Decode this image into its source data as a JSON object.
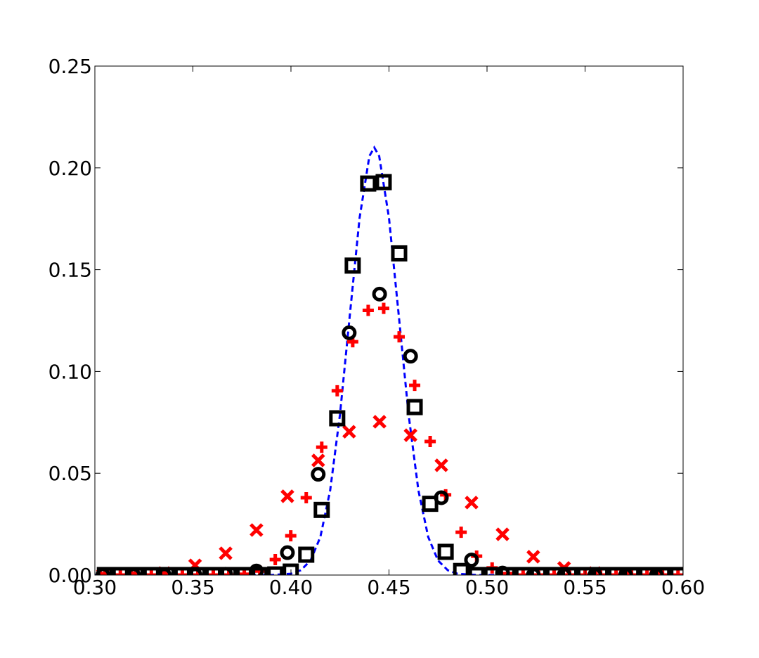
{
  "chart_data": {
    "type": "scatter",
    "xlim": [
      0.3,
      0.6
    ],
    "ylim": [
      0.0,
      0.25
    ],
    "xticks": [
      {
        "value": 0.3,
        "label": "0.30"
      },
      {
        "value": 0.35,
        "label": "0.35"
      },
      {
        "value": 0.4,
        "label": "0.40"
      },
      {
        "value": 0.45,
        "label": "0.45"
      },
      {
        "value": 0.5,
        "label": "0.50"
      },
      {
        "value": 0.55,
        "label": "0.55"
      },
      {
        "value": 0.6,
        "label": "0.60"
      }
    ],
    "yticks": [
      {
        "value": 0.0,
        "label": "0.00"
      },
      {
        "value": 0.05,
        "label": "0.05"
      },
      {
        "value": 0.1,
        "label": "0.10"
      },
      {
        "value": 0.15,
        "label": "0.15"
      },
      {
        "value": 0.2,
        "label": "0.20"
      },
      {
        "value": 0.25,
        "label": "0.25"
      }
    ],
    "series": [
      {
        "marker": "line",
        "linestyle": "dashed",
        "color": "#0000ff",
        "x": [
          0.3,
          0.35,
          0.39,
          0.4,
          0.405,
          0.41,
          0.415,
          0.42,
          0.425,
          0.43,
          0.435,
          0.44,
          0.4425,
          0.445,
          0.45,
          0.455,
          0.46,
          0.465,
          0.47,
          0.475,
          0.48,
          0.485,
          0.495,
          0.55,
          0.6
        ],
        "values": [
          0,
          0,
          0,
          0.00065,
          0.00233,
          0.00715,
          0.0187,
          0.0416,
          0.0788,
          0.1274,
          0.1754,
          0.2058,
          0.21,
          0.2058,
          0.1754,
          0.1274,
          0.0788,
          0.0416,
          0.0187,
          0.00715,
          0.00233,
          0.00065,
          0,
          0,
          0
        ]
      },
      {
        "marker": "plus",
        "color": "#ff0000",
        "x": [
          0.3051,
          0.313,
          0.3209,
          0.3288,
          0.3367,
          0.3446,
          0.3525,
          0.3604,
          0.3683,
          0.3762,
          0.3841,
          0.392,
          0.3999,
          0.4078,
          0.4157,
          0.4236,
          0.4315,
          0.4394,
          0.4473,
          0.4552,
          0.4631,
          0.471,
          0.4789,
          0.4868,
          0.4947,
          0.5026,
          0.5105,
          0.5184,
          0.5263,
          0.5342,
          0.5421,
          0.55,
          0.5579,
          0.5658,
          0.5737,
          0.5816,
          0.5895,
          0.5974
        ],
        "values": [
          0,
          0,
          0,
          0,
          0,
          0,
          0,
          0,
          0,
          0.0004,
          0.002,
          0.0076,
          0.0193,
          0.038,
          0.0628,
          0.0905,
          0.1146,
          0.13,
          0.131,
          0.117,
          0.0932,
          0.0656,
          0.0394,
          0.021,
          0.0093,
          0.0035,
          0.0007,
          0,
          0,
          0,
          0,
          0,
          0,
          0,
          0,
          0,
          0,
          0
        ]
      },
      {
        "marker": "x",
        "color": "#ff0000",
        "x": [
          0.3041,
          0.3197,
          0.3354,
          0.3511,
          0.3667,
          0.3824,
          0.3982,
          0.4139,
          0.4297,
          0.4452,
          0.461,
          0.4767,
          0.4921,
          0.5079,
          0.5236,
          0.5393,
          0.555,
          0.5707,
          0.5864
        ],
        "values": [
          0,
          0.0003,
          0.001,
          0.0048,
          0.0107,
          0.0221,
          0.0387,
          0.0563,
          0.0704,
          0.0753,
          0.0687,
          0.0539,
          0.0356,
          0.02,
          0.009,
          0.0035,
          0.001,
          0,
          0
        ]
      },
      {
        "marker": "circle",
        "color": "#000000",
        "x": [
          0.3041,
          0.3197,
          0.3354,
          0.3511,
          0.3667,
          0.3824,
          0.3982,
          0.4139,
          0.4297,
          0.4452,
          0.461,
          0.4767,
          0.4921,
          0.5079,
          0.5236,
          0.5393,
          0.555,
          0.5707,
          0.5864
        ],
        "values": [
          0,
          0,
          0,
          0,
          0.0004,
          0.002,
          0.011,
          0.0495,
          0.119,
          0.138,
          0.1075,
          0.038,
          0.0074,
          0.001,
          0,
          0,
          0,
          0,
          0
        ]
      },
      {
        "marker": "square",
        "color": "#000000",
        "x": [
          0.3051,
          0.313,
          0.3209,
          0.3288,
          0.3367,
          0.3446,
          0.3525,
          0.3604,
          0.3683,
          0.3762,
          0.3841,
          0.392,
          0.3999,
          0.4078,
          0.4157,
          0.4236,
          0.4315,
          0.4394,
          0.4473,
          0.4552,
          0.4631,
          0.471,
          0.4789,
          0.4868,
          0.4947,
          0.5026,
          0.5105,
          0.5184,
          0.5263,
          0.5342,
          0.5421,
          0.55,
          0.5579,
          0.5658,
          0.5737,
          0.5816,
          0.5895,
          0.5974
        ],
        "values": [
          0,
          0,
          0,
          0,
          0,
          0,
          0,
          0,
          0,
          0,
          0,
          0.0003,
          0.0017,
          0.01,
          0.032,
          0.077,
          0.152,
          0.1923,
          0.193,
          0.158,
          0.0825,
          0.035,
          0.0114,
          0.002,
          0,
          0,
          0,
          0,
          0,
          0,
          0,
          0,
          0,
          0,
          0,
          0,
          0,
          0
        ]
      }
    ]
  }
}
